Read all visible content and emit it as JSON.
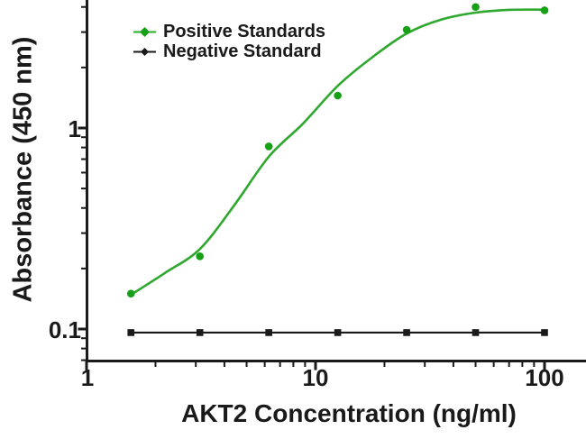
{
  "figure": {
    "background": "#ffffff",
    "axis_color": "#1a1a1a"
  },
  "chart_data": {
    "type": "line",
    "title": "",
    "xlabel": "AKT2 Concentration (ng/ml)",
    "ylabel": "Absorbance (450 nm)",
    "x_scale": "log10",
    "y_scale": "log10",
    "xlim": [
      1,
      150
    ],
    "ylim": [
      0.07,
      4.4
    ],
    "grid": false,
    "legend_position": "top-left-inside",
    "x_ticks": [
      {
        "value": 1,
        "label": "1"
      },
      {
        "value": 10,
        "label": "10"
      },
      {
        "value": 100,
        "label": "100"
      }
    ],
    "y_ticks": [
      {
        "value": 1,
        "label": "1"
      },
      {
        "value": 0.1,
        "label": "0.1"
      }
    ],
    "x_minor_ticks": [
      2,
      3,
      4,
      5,
      6,
      7,
      8,
      9,
      20,
      30,
      40,
      50,
      60,
      70,
      80,
      90
    ],
    "y_minor_ticks": [
      0.07,
      0.08,
      0.09,
      0.2,
      0.3,
      0.4,
      0.5,
      0.6,
      0.7,
      0.8,
      0.9,
      2,
      3,
      4
    ],
    "series": [
      {
        "name": "Positive Standards",
        "color": "#2fa82f",
        "marker_color": "#16a016",
        "marker": "circle",
        "x": [
          1.5625,
          3.125,
          6.25,
          12.5,
          25,
          50,
          100
        ],
        "y": [
          0.15,
          0.23,
          0.81,
          1.45,
          3.08,
          4.0,
          3.85
        ],
        "fit_curve": {
          "x": [
            1.5625,
            2.2,
            3.125,
            4.4,
            6.25,
            8.8,
            12.5,
            17.7,
            25,
            35,
            50,
            70,
            100
          ],
          "y": [
            0.148,
            0.19,
            0.25,
            0.41,
            0.72,
            1.05,
            1.62,
            2.25,
            2.95,
            3.45,
            3.75,
            3.87,
            3.88
          ]
        }
      },
      {
        "name": "Negative Standard",
        "color": "#1a1a1a",
        "marker_color": "#1a1a1a",
        "marker": "square",
        "x": [
          1.5625,
          3.125,
          6.25,
          12.5,
          25,
          50,
          100
        ],
        "y": [
          0.096,
          0.096,
          0.096,
          0.096,
          0.096,
          0.096,
          0.096
        ]
      }
    ]
  }
}
